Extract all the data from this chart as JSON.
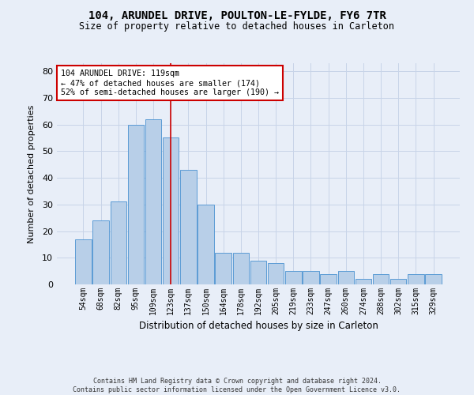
{
  "title": "104, ARUNDEL DRIVE, POULTON-LE-FYLDE, FY6 7TR",
  "subtitle": "Size of property relative to detached houses in Carleton",
  "xlabel": "Distribution of detached houses by size in Carleton",
  "ylabel": "Number of detached properties",
  "categories": [
    "54sqm",
    "68sqm",
    "82sqm",
    "95sqm",
    "109sqm",
    "123sqm",
    "137sqm",
    "150sqm",
    "164sqm",
    "178sqm",
    "192sqm",
    "205sqm",
    "219sqm",
    "233sqm",
    "247sqm",
    "260sqm",
    "274sqm",
    "288sqm",
    "302sqm",
    "315sqm",
    "329sqm"
  ],
  "bar_heights": [
    17,
    24,
    31,
    60,
    62,
    55,
    43,
    30,
    12,
    12,
    9,
    8,
    5,
    5,
    4,
    5,
    2,
    4,
    2,
    4,
    4
  ],
  "bar_color": "#b8cfe8",
  "bar_edge_color": "#5b9bd5",
  "grid_color": "#c8d4e8",
  "background_color": "#e8eef8",
  "vline_x": 5.0,
  "vline_color": "#cc0000",
  "annotation_text": "104 ARUNDEL DRIVE: 119sqm\n← 47% of detached houses are smaller (174)\n52% of semi-detached houses are larger (190) →",
  "annotation_box_color": "#ffffff",
  "annotation_box_edge_color": "#cc0000",
  "footer_line1": "Contains HM Land Registry data © Crown copyright and database right 2024.",
  "footer_line2": "Contains public sector information licensed under the Open Government Licence v3.0.",
  "ylim": [
    0,
    83
  ],
  "yticks": [
    0,
    10,
    20,
    30,
    40,
    50,
    60,
    70,
    80
  ],
  "title_fontsize": 10,
  "subtitle_fontsize": 8.5
}
